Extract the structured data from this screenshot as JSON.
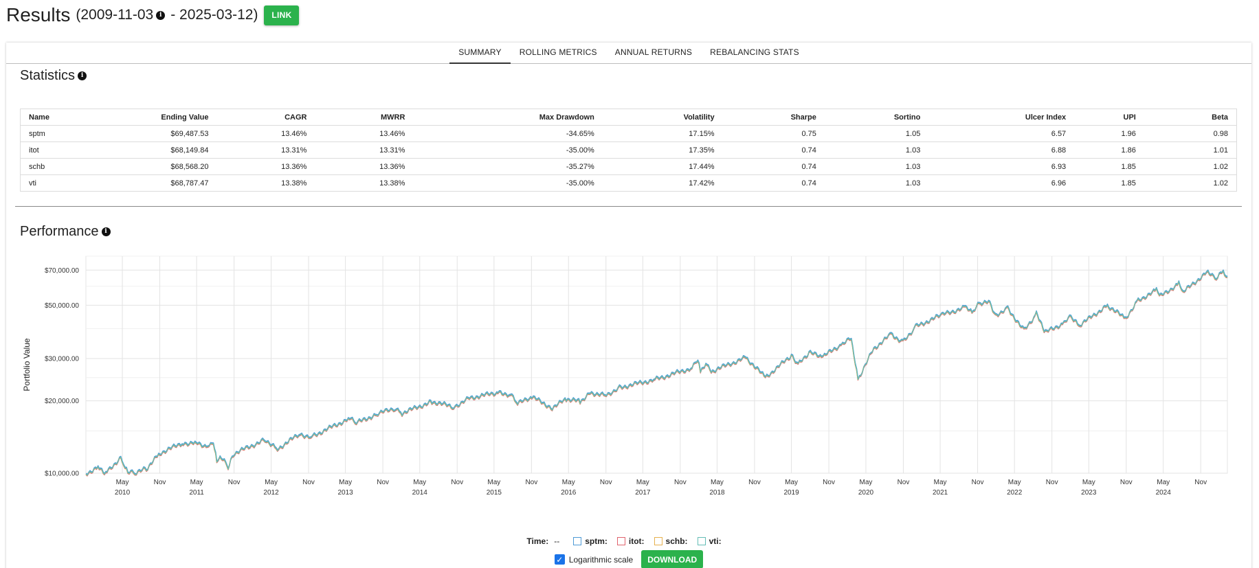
{
  "header": {
    "title": "Results",
    "range_start": "(2009-11-03",
    "range_end": "- 2025-03-12)",
    "link_label": "LINK"
  },
  "tabs": [
    {
      "label": "SUMMARY",
      "active": true
    },
    {
      "label": "ROLLING METRICS",
      "active": false
    },
    {
      "label": "ANNUAL RETURNS",
      "active": false
    },
    {
      "label": "REBALANCING STATS",
      "active": false
    }
  ],
  "statistics": {
    "title": "Statistics",
    "columns": [
      "Name",
      "Ending Value",
      "CAGR",
      "MWRR",
      "Max Drawdown",
      "Volatility",
      "Sharpe",
      "Sortino",
      "Ulcer Index",
      "UPI",
      "Beta"
    ],
    "rows": [
      [
        "sptm",
        "$69,487.53",
        "13.46%",
        "13.46%",
        "-34.65%",
        "17.15%",
        "0.75",
        "1.05",
        "6.57",
        "1.96",
        "0.98"
      ],
      [
        "itot",
        "$68,149.84",
        "13.31%",
        "13.31%",
        "-35.00%",
        "17.35%",
        "0.74",
        "1.03",
        "6.88",
        "1.86",
        "1.01"
      ],
      [
        "schb",
        "$68,568.20",
        "13.36%",
        "13.36%",
        "-35.27%",
        "17.44%",
        "0.74",
        "1.03",
        "6.93",
        "1.85",
        "1.02"
      ],
      [
        "vti",
        "$68,787.47",
        "13.38%",
        "13.38%",
        "-35.00%",
        "17.42%",
        "0.74",
        "1.03",
        "6.96",
        "1.85",
        "1.02"
      ]
    ]
  },
  "performance": {
    "title": "Performance"
  },
  "chart_data": {
    "type": "line",
    "ylabel": "Portfolio Value",
    "yscale": "log",
    "ylim": [
      10000,
      80000
    ],
    "y_ticks": [
      {
        "value": 10000,
        "label": "$10,000.00"
      },
      {
        "value": 20000,
        "label": "$20,000.00"
      },
      {
        "value": 30000,
        "label": "$30,000.00"
      },
      {
        "value": 50000,
        "label": "$50,000.00"
      },
      {
        "value": 70000,
        "label": "$70,000.00"
      }
    ],
    "xlim": [
      "2009-11-03",
      "2025-03-12"
    ],
    "x_ticks": [
      {
        "date": "2010-05-01",
        "month": "May",
        "year": "2010"
      },
      {
        "date": "2010-11-01",
        "month": "Nov",
        "year": ""
      },
      {
        "date": "2011-05-01",
        "month": "May",
        "year": "2011"
      },
      {
        "date": "2011-11-01",
        "month": "Nov",
        "year": ""
      },
      {
        "date": "2012-05-01",
        "month": "May",
        "year": "2012"
      },
      {
        "date": "2012-11-01",
        "month": "Nov",
        "year": ""
      },
      {
        "date": "2013-05-01",
        "month": "May",
        "year": "2013"
      },
      {
        "date": "2013-11-01",
        "month": "Nov",
        "year": ""
      },
      {
        "date": "2014-05-01",
        "month": "May",
        "year": "2014"
      },
      {
        "date": "2014-11-01",
        "month": "Nov",
        "year": ""
      },
      {
        "date": "2015-05-01",
        "month": "May",
        "year": "2015"
      },
      {
        "date": "2015-11-01",
        "month": "Nov",
        "year": ""
      },
      {
        "date": "2016-05-01",
        "month": "May",
        "year": "2016"
      },
      {
        "date": "2016-11-01",
        "month": "Nov",
        "year": ""
      },
      {
        "date": "2017-05-01",
        "month": "May",
        "year": "2017"
      },
      {
        "date": "2017-11-01",
        "month": "Nov",
        "year": ""
      },
      {
        "date": "2018-05-01",
        "month": "May",
        "year": "2018"
      },
      {
        "date": "2018-11-01",
        "month": "Nov",
        "year": ""
      },
      {
        "date": "2019-05-01",
        "month": "May",
        "year": "2019"
      },
      {
        "date": "2019-11-01",
        "month": "Nov",
        "year": ""
      },
      {
        "date": "2020-05-01",
        "month": "May",
        "year": "2020"
      },
      {
        "date": "2020-11-01",
        "month": "Nov",
        "year": ""
      },
      {
        "date": "2021-05-01",
        "month": "May",
        "year": "2021"
      },
      {
        "date": "2021-11-01",
        "month": "Nov",
        "year": ""
      },
      {
        "date": "2022-05-01",
        "month": "May",
        "year": "2022"
      },
      {
        "date": "2022-11-01",
        "month": "Nov",
        "year": ""
      },
      {
        "date": "2023-05-01",
        "month": "May",
        "year": "2023"
      },
      {
        "date": "2023-11-01",
        "month": "Nov",
        "year": ""
      },
      {
        "date": "2024-05-01",
        "month": "May",
        "year": "2024"
      },
      {
        "date": "2024-11-01",
        "month": "Nov",
        "year": ""
      }
    ],
    "grid": true,
    "series": [
      {
        "name": "sptm",
        "color": "#4e9ad6",
        "dx": 0.2,
        "offset": 1.0
      },
      {
        "name": "itot",
        "color": "#e0626c",
        "dx": 0.0,
        "offset": 0.985
      },
      {
        "name": "schb",
        "color": "#e6b04d",
        "dx": -0.2,
        "offset": 0.99
      },
      {
        "name": "vti",
        "color": "#63bdb5",
        "dx": 0.1,
        "offset": 0.992
      }
    ],
    "x": [
      "2009-11-03",
      "2010-01-01",
      "2010-02-08",
      "2010-04-23",
      "2010-05-07",
      "2010-05-28",
      "2010-07-02",
      "2010-08-27",
      "2010-11-01",
      "2011-02-18",
      "2011-04-29",
      "2011-06-24",
      "2011-07-22",
      "2011-08-08",
      "2011-08-31",
      "2011-10-03",
      "2011-10-28",
      "2012-04-02",
      "2012-06-01",
      "2012-09-14",
      "2012-11-15",
      "2013-05-21",
      "2013-06-24",
      "2013-10-08",
      "2013-12-31",
      "2014-02-03",
      "2014-06-30",
      "2014-10-15",
      "2014-12-31",
      "2015-05-20",
      "2015-07-20",
      "2015-08-25",
      "2015-11-03",
      "2016-02-11",
      "2016-04-20",
      "2016-06-27",
      "2016-08-15",
      "2016-11-03",
      "2016-12-30",
      "2017-06-30",
      "2017-12-29",
      "2018-01-26",
      "2018-02-08",
      "2018-03-12",
      "2018-04-02",
      "2018-09-20",
      "2018-12-24",
      "2019-04-30",
      "2019-06-03",
      "2019-07-26",
      "2019-10-03",
      "2019-12-31",
      "2020-02-19",
      "2020-03-23",
      "2020-06-08",
      "2020-09-02",
      "2020-10-30",
      "2020-12-31",
      "2021-05-07",
      "2021-09-02",
      "2021-10-04",
      "2021-11-08",
      "2021-12-31",
      "2022-01-27",
      "2022-03-29",
      "2022-06-16",
      "2022-08-16",
      "2022-09-30",
      "2022-12-30",
      "2023-02-02",
      "2023-03-13",
      "2023-07-31",
      "2023-10-27",
      "2023-12-29",
      "2024-03-28",
      "2024-04-19",
      "2024-07-16",
      "2024-08-05",
      "2024-12-06",
      "2025-01-10",
      "2025-02-19",
      "2025-03-12"
    ],
    "values": [
      10000,
      10700,
      10100,
      11700,
      10900,
      10200,
      10100,
      10500,
      12200,
      13400,
      13500,
      13000,
      13400,
      11300,
      11700,
      10700,
      12100,
      13900,
      12700,
      14600,
      14300,
      17000,
      16300,
      17800,
      18800,
      17900,
      20000,
      19000,
      20700,
      21800,
      21400,
      19600,
      20900,
      18800,
      20500,
      20000,
      21800,
      21200,
      22800,
      24700,
      27600,
      29800,
      26800,
      28800,
      26700,
      30500,
      25200,
      31000,
      28500,
      31900,
      30800,
      34500,
      36600,
      24800,
      33200,
      38100,
      35400,
      41000,
      45800,
      49400,
      46700,
      51300,
      51800,
      45800,
      48900,
      39500,
      46300,
      38800,
      42500,
      45100,
      41300,
      50300,
      44300,
      52800,
      58000,
      55000,
      62000,
      56900,
      69700,
      64800,
      70000,
      66000
    ]
  },
  "legend": {
    "time_label": "Time:",
    "time_value": "--",
    "items": [
      "sptm:",
      "itot:",
      "schb:",
      "vti:"
    ]
  },
  "controls": {
    "log_label": "Logarithmic scale",
    "download_label": "DOWNLOAD"
  },
  "colors": {
    "accent_green": "#2bb24c",
    "checkbox_blue": "#1a73e8"
  }
}
